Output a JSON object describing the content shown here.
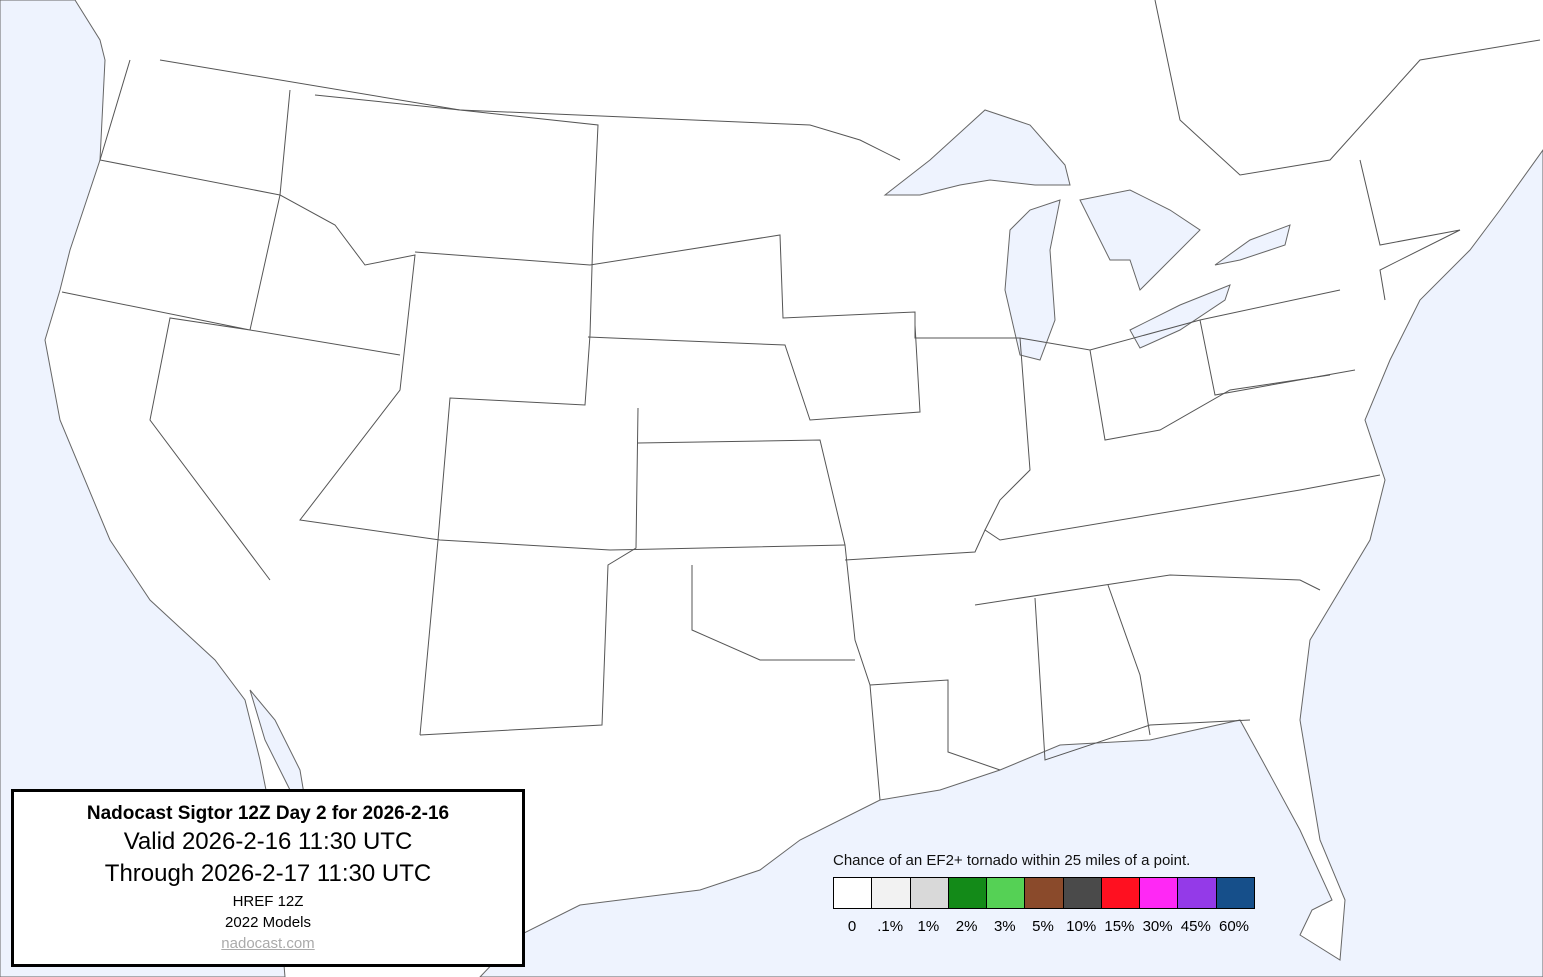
{
  "title_box": {
    "title": "Nadocast Sigtor 12Z Day 2 for 2026-2-16",
    "valid": "Valid 2026-2-16 11:30 UTC",
    "through": "Through 2026-2-17 11:30 UTC",
    "model": "HREF 12Z",
    "models_version": "2022 Models",
    "link": "nadocast.com"
  },
  "legend": {
    "title": "Chance of an EF2+ tornado within 25 miles of a point.",
    "bins": [
      {
        "label": "0",
        "color": "#ffffff"
      },
      {
        "label": ".1%",
        "color": "#f2f2f2"
      },
      {
        "label": "1%",
        "color": "#d9d9d9"
      },
      {
        "label": "2%",
        "color": "#138a18"
      },
      {
        "label": "3%",
        "color": "#55d155"
      },
      {
        "label": "5%",
        "color": "#8a4a2b"
      },
      {
        "label": "10%",
        "color": "#4a4a4a"
      },
      {
        "label": "15%",
        "color": "#ff1020"
      },
      {
        "label": "30%",
        "color": "#ff28f5"
      },
      {
        "label": "45%",
        "color": "#943ae8"
      },
      {
        "label": "60%",
        "color": "#164f8a"
      }
    ]
  },
  "map": {
    "water_color": "#eef3fe",
    "land_color": "#ffffff"
  }
}
